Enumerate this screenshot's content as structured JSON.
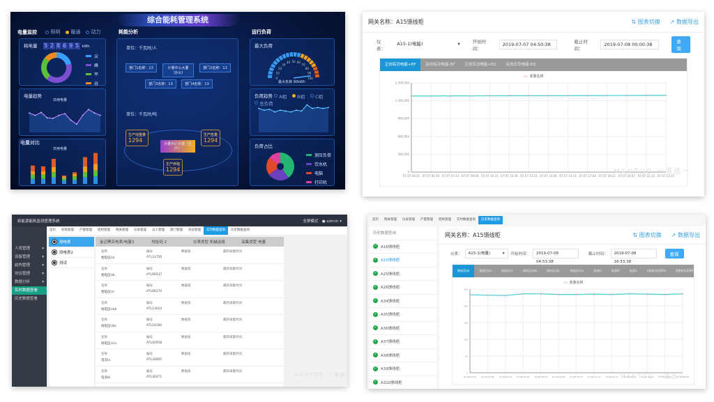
{
  "dashboard": {
    "title": "综合能耗管理系统",
    "power_monitor": {
      "title": "电量监控",
      "options": [
        "照明",
        "暖通",
        "动力"
      ],
      "selected": "暖通",
      "consumption_label": "耗电量",
      "digits": [
        "5",
        "2",
        "8",
        "6",
        "9",
        "5"
      ],
      "unit": "kWh",
      "donut": {
        "legend": [
          "尖",
          "峰",
          "平",
          "谷"
        ],
        "colors": [
          "#3aa0ff",
          "#7a4fd0",
          "#5bbf3a",
          "#f08a20"
        ],
        "values": [
          21,
          40,
          25,
          14
        ],
        "labels": [
          "21%",
          "40%",
          "25%",
          "14%"
        ]
      }
    },
    "trend": {
      "title": "电量趋势",
      "subtitle": "日用电量",
      "tooltip": "420",
      "values": [
        440,
        420,
        445,
        400,
        395,
        420,
        435,
        380,
        345,
        420,
        470,
        440,
        420
      ]
    },
    "compare": {
      "title": "电量对比",
      "subtitle": "日用电量",
      "stacks": [
        [
          60,
          50,
          40,
          70
        ],
        [
          60,
          50,
          40,
          60
        ],
        [
          80,
          60,
          60,
          100
        ],
        [
          40,
          30,
          20,
          10
        ],
        [
          50,
          40,
          30,
          20
        ],
        [
          80,
          60,
          70,
          110
        ],
        [
          90,
          70,
          80,
          130
        ]
      ],
      "colors": [
        "#2d8fe0",
        "#5bbf3a",
        "#f0a020",
        "#e05a2a"
      ]
    },
    "analysis": {
      "title": "耗能分析",
      "unit1": "单位：千瓦时/人",
      "center1": "计量中心大厦（办公）",
      "depts": [
        "部门1名称：13",
        "部门2名称：13",
        "部门3名称：13",
        "部门4名称：13"
      ],
      "unit2": "单位：千瓦时/吨",
      "center2": "计量中心大楼（生产）",
      "prod": [
        {
          "name": "生产线重量",
          "value": "1294"
        },
        {
          "name": "生产危量",
          "value": "1294"
        },
        {
          "name": "生产养殖",
          "value": "1294"
        }
      ]
    },
    "load": {
      "title": "运行负荷",
      "max_title": "最大负荷",
      "gauge_ticks": [
        "0",
        "10",
        "20",
        "30",
        "40",
        "50",
        "60",
        "70",
        "80",
        "90",
        "100"
      ],
      "gauge_value": 90,
      "max_label": "最大负荷",
      "max_value": "90kWh",
      "trend_title": "负荷趋势",
      "trend_options": [
        "A相",
        "B相",
        "C相",
        "总负荷"
      ],
      "trend_selected": "B相",
      "trend_values": [
        24,
        22,
        23,
        20,
        22,
        21,
        20,
        22,
        21,
        28,
        24,
        25,
        24,
        25
      ],
      "share_title": "负荷占比",
      "share_legend": [
        "测压负荷",
        "饮水机",
        "电脑",
        "打印机"
      ],
      "share_colors": [
        "#22b573",
        "#6a3fc0",
        "#e04a2a",
        "#e0409a"
      ],
      "share_labels": [
        "40%",
        "25%",
        "21%",
        "14%"
      ]
    }
  },
  "top_right": {
    "gateway": "网关名称：A15馈线柜",
    "chart_switch": "图表切换",
    "export": "数据导出",
    "meter_label": "仪表：",
    "meter_value": "A15-1(电能)",
    "start_label": "开始时间：",
    "start_value": "2019-07-07 04:50:38",
    "end_label": "截止时间：",
    "end_value": "2019-07-08 00:00:38",
    "query": "查询",
    "tabs": [
      "正向有功电能+EP",
      "反向有功电能-EP",
      "正向无功电能+EQ",
      "反向无功电能-EQ"
    ],
    "active_tab": 0,
    "watermark": "MANTOO 一漫途一",
    "chart_data": {
      "type": "line",
      "legend": "变量名称",
      "ylim": [
        0,
        1500000
      ],
      "yticks": [
        "0",
        "300,000",
        "600,000",
        "900,000",
        "1,200,000",
        "1,500,000"
      ],
      "x": [
        "07-07 04:51",
        "07-07 06:16",
        "07-07 07:41",
        "07-07 09:06",
        "07-07 10:31",
        "07-07 11:56",
        "07-07 13:21",
        "07-07 14:46",
        "07-07 16:11",
        "07-07 17:04",
        "07-07 19:22",
        "07-07 20:47",
        "07-07 22:12",
        "07-07 23:37"
      ],
      "y": [
        1280000,
        1281000,
        1282000,
        1282000,
        1283000,
        1284000,
        1285000,
        1285000,
        1286000,
        1287000,
        1288000,
        1289000,
        1290000,
        1291000
      ],
      "color": "#4dd0d8"
    }
  },
  "bottom_left": {
    "app_title": "新能源能耗监测管理系统",
    "user": "admin",
    "fullscreen": "全屏模式",
    "nav": [
      "首页",
      "权限管理",
      "产量管理",
      "结构管理",
      "网关管理",
      "仪表管理",
      "员工管理",
      "部门管理",
      "协议管理",
      "实时数据查询",
      "历史数据查询"
    ],
    "nav_active": 9,
    "sidebar": [
      "人员管理",
      "设备管理",
      "结构管理",
      "协议管理",
      "数据分析",
      "实时数据查看",
      "历史数据查看"
    ],
    "sidebar_active": 5,
    "meters": [
      "测电表",
      "测电表2",
      "测试"
    ],
    "meters_active": 0,
    "header": [
      "金迈黑实电表/电量3",
      "地址码 2",
      "仪表类型 机械运组",
      "采集类型 电量"
    ],
    "col_labels": [
      "名称",
      "编号",
      "数据值",
      "最新采集时间"
    ],
    "rows": [
      [
        "相电压Ua",
        "ATL31756"
      ],
      [
        "相电压Ub",
        "ATL90537"
      ],
      [
        "相电压Uc",
        "ATL96270"
      ],
      [
        "线电压Uab",
        "ATL13024"
      ],
      [
        "线电压Ubc",
        "ATL14390"
      ],
      [
        "线电压Uca",
        "ATL40958"
      ],
      [
        "电流Ia",
        "ATL34805"
      ],
      [
        "电流Ib",
        "ATL36471"
      ]
    ],
    "watermark": "MANTOO 一漫途一"
  },
  "bottom_right": {
    "nav": [
      "首页",
      "网关管理",
      "仪表管理",
      "产量管理",
      "结构管理",
      "实时数据查询",
      "历史数据查询"
    ],
    "nav_active": 6,
    "list_title": "历史数据查询",
    "list": [
      "A16馈线柜",
      "A15馈线柜",
      "A25馈线柜",
      "A26馈线柜",
      "A34馈线柜",
      "A35馈线柜",
      "A36馈线柜",
      "A37馈线柜",
      "A38馈线柜",
      "A39馈线柜",
      "A310馈线柜"
    ],
    "list_active": 1,
    "gateway": "网关名称：A15馈线柜",
    "chart_switch": "图表切换",
    "export": "数据导出",
    "meter_label": "仪表：",
    "meter_value": "A15-1(电量)",
    "start_label": "开始时间：",
    "start_value": "2019-07-08 04:53:38",
    "end_label": "截止时间：",
    "end_value": "2019-07-08 16:53:38",
    "query": "查询",
    "tabs": [
      "相电压Ua",
      "相电压Ub",
      "相电压Uc",
      "线电压Uab",
      "线电压Ubc",
      "线电压Uca",
      "电流Ia",
      "电流Ib",
      "电流Ic",
      "A相有功功率Pa",
      "B相有功功率Pb"
    ],
    "active_tab": 0,
    "watermark": "MANTOO 一漫途一",
    "chart_data": {
      "type": "line",
      "legend": "变量名称",
      "ylim": [
        0,
        250
      ],
      "yticks": [
        "0",
        "50",
        "100",
        "150",
        "200",
        "250"
      ],
      "x": [
        "07-08 04:53",
        "07-08 05:48",
        "07-08 06:43",
        "07-08 07:38",
        "07-08 08:33",
        "07-08 09:28",
        "07-08 10:23",
        "07-08 11:19",
        "07-08 12:14",
        "07-08 13:09",
        "07-08 14:04",
        "07-08 15:00",
        "07-08 16:04"
      ],
      "y": [
        233,
        232,
        231,
        236,
        236,
        234,
        234,
        235,
        234,
        236,
        235,
        234,
        236
      ],
      "color": "#4dd0d8"
    }
  }
}
